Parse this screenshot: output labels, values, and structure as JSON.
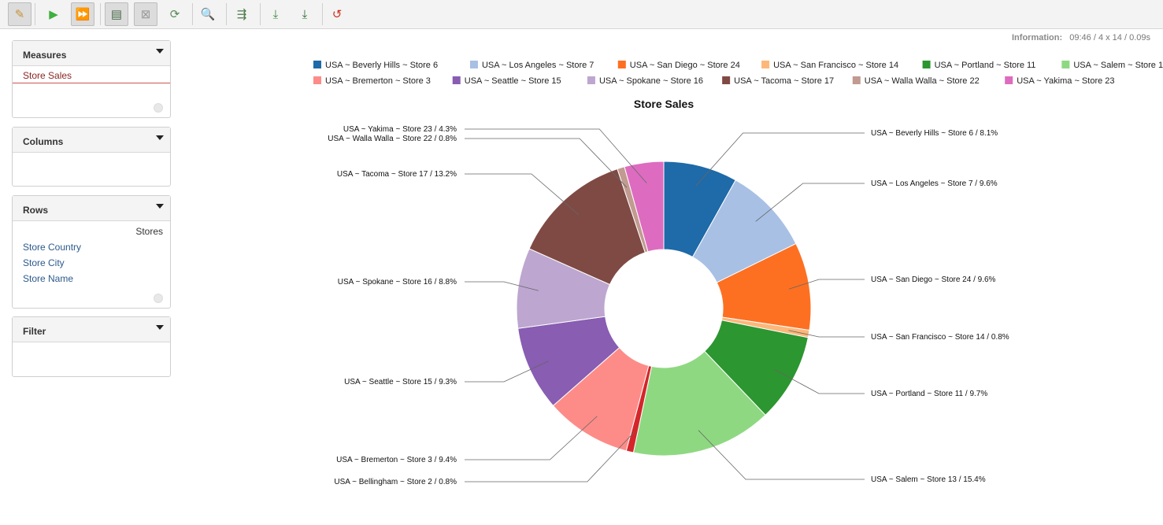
{
  "toolbar": {
    "buttons": [
      {
        "name": "edit-button",
        "icon": "pencil-icon",
        "glyph": "✎",
        "color": "#c8913a",
        "active": true
      },
      {
        "name": "run-button",
        "icon": "play-icon",
        "glyph": "▶",
        "color": "#3faf3f",
        "active": false
      },
      {
        "name": "auto-run-button",
        "icon": "fast-forward-icon",
        "glyph": "⏩",
        "color": "#3faf3f",
        "active": true
      },
      {
        "name": "show-table-button",
        "icon": "table-icon",
        "glyph": "▤",
        "color": "#4a6a4a",
        "active": true
      },
      {
        "name": "hide-button",
        "icon": "grid-hide-icon",
        "glyph": "⊠",
        "color": "#999999",
        "active": true
      },
      {
        "name": "refresh-button",
        "icon": "refresh-icon",
        "glyph": "⟳",
        "color": "#5a8a5a",
        "active": false
      },
      {
        "name": "zoom-button",
        "icon": "magnifier-icon",
        "glyph": "🔍",
        "color": "#c28a2a",
        "active": false
      },
      {
        "name": "export-button",
        "icon": "export-table-icon",
        "glyph": "⇶",
        "color": "#4a7a4a",
        "active": false
      },
      {
        "name": "download-button",
        "icon": "download-icon",
        "glyph": "⤓",
        "color": "#3a8a3a",
        "active": false
      },
      {
        "name": "download-alt-button",
        "icon": "download-alt-icon",
        "glyph": "⤓",
        "color": "#2a6a2a",
        "active": false
      },
      {
        "name": "undo-button",
        "icon": "undo-icon",
        "glyph": "↺",
        "color": "#d03020",
        "active": false
      }
    ]
  },
  "info": {
    "label": "Information:",
    "time": "09:46",
    "size": "/  4 x 14",
    "duration": "/  0.09s"
  },
  "panels": {
    "measures": {
      "title": "Measures",
      "items": [
        "Store Sales"
      ]
    },
    "columns": {
      "title": "Columns"
    },
    "rows": {
      "title": "Rows",
      "dimension": "Stores",
      "items": [
        "Store Country",
        "Store City",
        "Store Name"
      ]
    },
    "filter": {
      "title": "Filter"
    }
  },
  "chart_data": {
    "type": "pie",
    "title": "Store Sales",
    "donut": true,
    "legend_position": "top",
    "series": [
      {
        "name": "USA ~ Beverly Hills ~ Store 6",
        "value": 8.1,
        "color": "#1f6aa8",
        "label": "USA ~ Beverly Hills ~ Store 6 / 8.1%"
      },
      {
        "name": "USA ~ Los Angeles ~ Store 7",
        "value": 9.6,
        "color": "#a8c0e4",
        "label": "USA ~ Los Angeles ~ Store 7 / 9.6%"
      },
      {
        "name": "USA ~ San Diego ~ Store 24",
        "value": 9.6,
        "color": "#fd7022",
        "label": "USA ~ San Diego ~ Store 24 / 9.6%"
      },
      {
        "name": "USA ~ San Francisco ~ Store 14",
        "value": 0.8,
        "color": "#fdb77a",
        "label": "USA ~ San Francisco ~ Store 14 / 0.8%"
      },
      {
        "name": "USA ~ Portland ~ Store 11",
        "value": 9.7,
        "color": "#2c9630",
        "label": "USA ~ Portland ~ Store 11 / 9.7%"
      },
      {
        "name": "USA ~ Salem ~ Store 13",
        "value": 15.4,
        "color": "#8fd882",
        "label": "USA ~ Salem ~ Store 13 / 15.4%"
      },
      {
        "name": "USA ~ Bellingham ~ Store 2",
        "value": 0.8,
        "color": "#d4262b",
        "label": "USA ~ Bellingham ~ Store 2 / 0.8%"
      },
      {
        "name": "USA ~ Bremerton ~ Store 3",
        "value": 9.4,
        "color": "#fd8c88",
        "label": "USA ~ Bremerton ~ Store 3 / 9.4%"
      },
      {
        "name": "USA ~ Seattle ~ Store 15",
        "value": 9.3,
        "color": "#885db2",
        "label": "USA ~ Seattle ~ Store 15 / 9.3%"
      },
      {
        "name": "USA ~ Spokane ~ Store 16",
        "value": 8.8,
        "color": "#bda6cf",
        "label": "USA ~ Spokane ~ Store 16 / 8.8%"
      },
      {
        "name": "USA ~ Tacoma ~ Store 17",
        "value": 13.2,
        "color": "#7f4a44",
        "label": "USA ~ Tacoma ~ Store 17 / 13.2%"
      },
      {
        "name": "USA ~ Walla Walla ~ Store 22",
        "value": 0.8,
        "color": "#c19a90",
        "label": "USA ~ Walla Walla ~ Store 22 / 0.8%"
      },
      {
        "name": "USA ~ Yakima ~ Store 23",
        "value": 4.3,
        "color": "#dd6cc0",
        "label": "USA ~ Yakima ~ Store 23 / 4.3%"
      }
    ]
  }
}
